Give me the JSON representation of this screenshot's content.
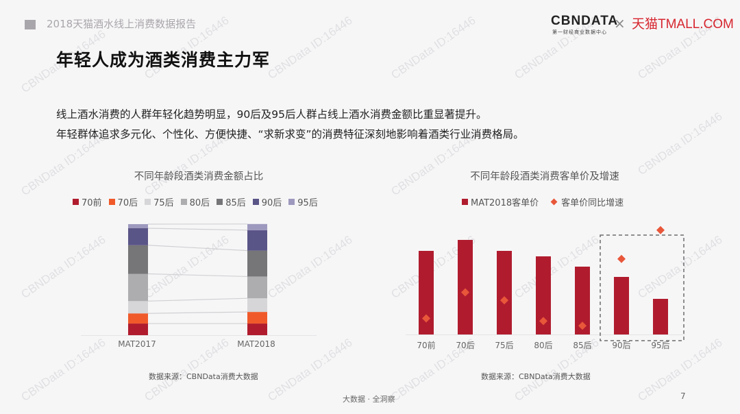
{
  "header": {
    "report_title": "2018天猫酒水线上消费数据报告",
    "logo_cbndata": "CBNDATA",
    "logo_cbndata_sub": "第一财经商业数据中心",
    "logo_separator": "×",
    "logo_tmall": "天猫TMALL.COM"
  },
  "page_title": "年轻人成为酒类消费主力军",
  "description": [
    "线上酒水消费的人群年轻化趋势明显，90后及95后人群占线上酒水消费金额比重显著提升。",
    "年轻群体追求多元化、个性化、方便快捷、“求新求变”的消费特征深刻地影响着酒类行业消费格局。"
  ],
  "colors": {
    "70前": "#b01c2e",
    "70后": "#f05a2a",
    "75后": "#d6d5d7",
    "80后": "#adacae",
    "85后": "#767577",
    "90后": "#5a5587",
    "95后": "#9d99be",
    "bar": "#b01c2e",
    "diamond": "#e8573a"
  },
  "chart_data": [
    {
      "type": "bar",
      "stacked": true,
      "normalized": true,
      "title": "不同年龄段酒类消费金额占比",
      "categories": [
        "MAT2017",
        "MAT2018"
      ],
      "series": [
        {
          "name": "70前",
          "values": [
            10.4,
            10.4
          ]
        },
        {
          "name": "70后",
          "values": [
            9.1,
            10.4
          ]
        },
        {
          "name": "75后",
          "values": [
            11.0,
            12.2
          ]
        },
        {
          "name": "80后",
          "values": [
            24.4,
            19.5
          ]
        },
        {
          "name": "85后",
          "values": [
            25.6,
            23.2
          ]
        },
        {
          "name": "90后",
          "values": [
            15.2,
            18.3
          ]
        },
        {
          "name": "95后",
          "values": [
            3.7,
            5.5
          ]
        }
      ],
      "legend": [
        "70前",
        "70后",
        "75后",
        "80后",
        "85后",
        "90后",
        "95后"
      ],
      "legend_position": "top",
      "ylim": [
        0,
        100
      ],
      "grid": false,
      "source": "数据来源：CBNData消费大数据"
    },
    {
      "type": "bar",
      "title": "不同年龄段酒类消费客单价及增速",
      "categories": [
        "70前",
        "70后",
        "75后",
        "80后",
        "85后",
        "90后",
        "95后"
      ],
      "series": [
        {
          "name": "MAT2018客单价",
          "type": "bar",
          "values": [
            122,
            138,
            122,
            114,
            99,
            84,
            52
          ]
        },
        {
          "name": "客单价同比增速",
          "type": "scatter",
          "marker": "diamond",
          "values": [
            20,
            59,
            47,
            16,
            9,
            109,
            152
          ]
        }
      ],
      "legend": [
        "MAT2018客单价",
        "客单价同比增速"
      ],
      "legend_position": "top",
      "annotation": "dashed box highlighting 90后 and 95后",
      "yaxis_labels_shown": false,
      "grid": false,
      "source": "数据来源：CBNData消费大数据"
    }
  ],
  "left_chart": {
    "title": "不同年龄段酒类消费金额占比",
    "legend": [
      "70前",
      "70后",
      "75后",
      "80后",
      "85后",
      "90后",
      "95后"
    ],
    "x_labels": [
      "MAT2017",
      "MAT2018"
    ],
    "source": "数据来源：CBNData消费大数据"
  },
  "right_chart": {
    "title": "不同年龄段酒类消费客单价及增速",
    "legend_bar": "MAT2018客单价",
    "legend_diamond": "客单价同比增速",
    "x_labels": [
      "70前",
      "70后",
      "75后",
      "80后",
      "85后",
      "90后",
      "95后"
    ],
    "source": "数据来源：CBNData消费大数据"
  },
  "footer": {
    "slogan": "大数据 · 全洞察",
    "page_number": "7"
  },
  "watermark": "CBNData ID:16446"
}
